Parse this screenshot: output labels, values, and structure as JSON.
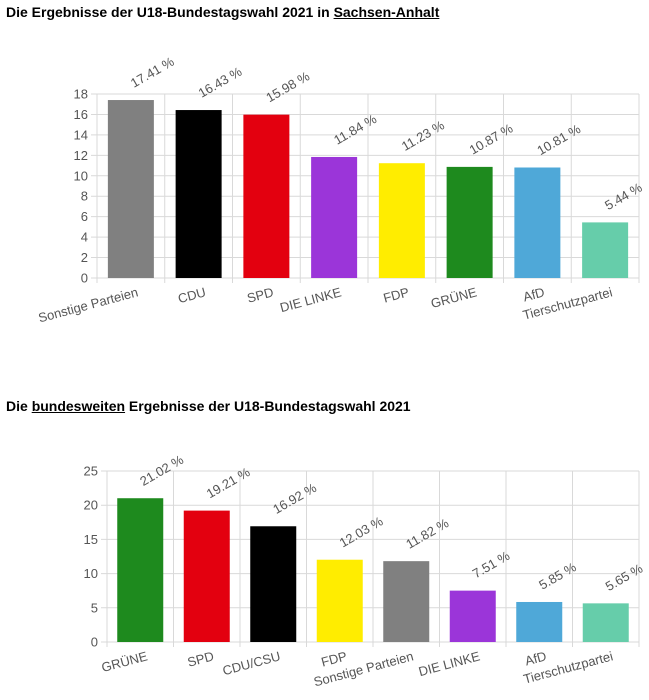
{
  "charts": [
    {
      "title_before": "Die Ergebnisse der U18-Bundestagswahl 2021 in ",
      "title_underlined": "Sachsen-Anhalt",
      "title_after": ""
    },
    {
      "title_before": "Die ",
      "title_underlined": "bundesweiten",
      "title_after": " Ergebnisse der U18-Bundestagswahl 2021"
    }
  ],
  "chart_data": [
    {
      "type": "bar",
      "title": "Die Ergebnisse der U18-Bundestagswahl 2021 in Sachsen-Anhalt",
      "categories": [
        "Sonstige Parteien",
        "CDU",
        "SPD",
        "DIE LINKE",
        "FDP",
        "GRÜNE",
        "AfD",
        "Tierschutzpartei"
      ],
      "values": [
        17.41,
        16.43,
        15.98,
        11.84,
        11.23,
        10.87,
        10.81,
        5.44
      ],
      "value_labels": [
        "17.41 %",
        "16.43 %",
        "15.98 %",
        "11.84 %",
        "11.23 %",
        "10.87 %",
        "10.81 %",
        "5.44 %"
      ],
      "colors": [
        "#808080",
        "#000000",
        "#e3000f",
        "#9b35d9",
        "#ffed00",
        "#1e8a1e",
        "#4fa8d8",
        "#66cdaa"
      ],
      "yticks": [
        0,
        2,
        4,
        6,
        8,
        10,
        12,
        14,
        16,
        18
      ],
      "ylim": [
        0,
        18
      ],
      "grid": true,
      "xlabel": "",
      "ylabel": ""
    },
    {
      "type": "bar",
      "title": "Die bundesweiten Ergebnisse der U18-Bundestagswahl 2021",
      "categories": [
        "GRÜNE",
        "SPD",
        "CDU/CSU",
        "FDP",
        "Sonstige Parteien",
        "DIE LINKE",
        "AfD",
        "Tierschutzpartei"
      ],
      "values": [
        21.02,
        19.21,
        16.92,
        12.03,
        11.82,
        7.51,
        5.85,
        5.65
      ],
      "value_labels": [
        "21.02 %",
        "19.21 %",
        "16.92 %",
        "12.03 %",
        "11.82 %",
        "7.51 %",
        "5.85 %",
        "5.65 %"
      ],
      "colors": [
        "#1e8a1e",
        "#e3000f",
        "#000000",
        "#ffed00",
        "#808080",
        "#9b35d9",
        "#4fa8d8",
        "#66cdaa"
      ],
      "yticks": [
        0,
        5,
        10,
        15,
        20,
        25
      ],
      "ylim": [
        0,
        25
      ],
      "grid": true,
      "xlabel": "",
      "ylabel": ""
    }
  ]
}
